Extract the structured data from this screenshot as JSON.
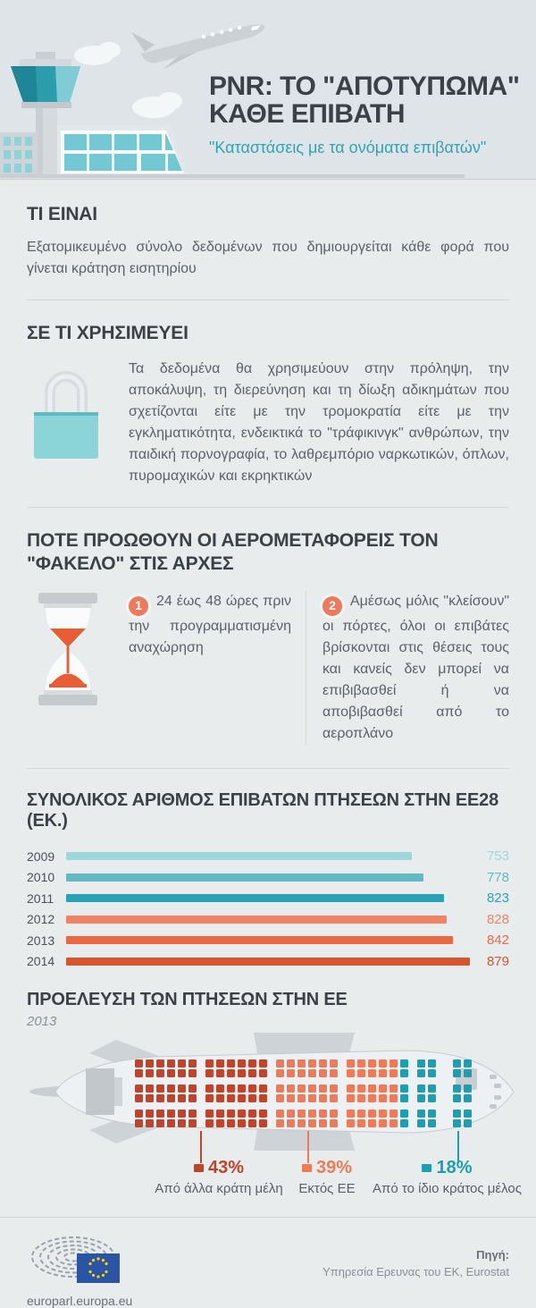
{
  "header": {
    "title_line1": "PNR: ΤΟ \"ΑΠΟΤΥΠΩΜΑ\"",
    "title_line2": "ΚΑΘΕ ΕΠΙΒΑΤΗ",
    "subtitle": "\"Καταστάσεις με τα ονόματα επιβατών\""
  },
  "sections": {
    "what": {
      "heading": "ΤΙ ΕΙΝΑΙ",
      "body": "Εξατομικευμένο σύνολο δεδομένων που δημιουργείται κάθε φορά που γίνεται κράτηση εισητηρίου"
    },
    "use": {
      "heading": "ΣΕ ΤΙ ΧΡΗΣΙΜΕΥΕΙ",
      "body": "Τα δεδομένα θα χρησιμεύουν στην πρόληψη, την αποκάλυψη, τη διερεύνηση και τη δίωξη αδικημάτων που σχετίζονται είτε με την τρομοκρατία είτε με την εγκληματικότητα, ενδεικτικά το \"τράφικινγκ\" ανθρώπων, την παιδική πορνογραφία, το λαθρεμπόριο ναρκωτικών, όπλων, πυρομαχικών και εκρηκτικών"
    },
    "when": {
      "heading_line1": "ΠΟΤΕ ΠΡΟΩΘΟΥΝ ΟΙ ΑΕΡΟΜΕΤΑΦΟΡΕΙΣ ΤΟΝ",
      "heading_line2": "\"ΦΑΚΕΛΟ\" ΣΤΙΣ ΑΡΧΕΣ",
      "items": [
        {
          "number": "1",
          "text": "24 έως 48 ώρες πριν την προγραμματισμένη αναχώρηση"
        },
        {
          "number": "2",
          "text": "Αμέσως μόλις \"κλείσουν\" οι πόρτες, όλοι οι επιβάτες βρίσκονται στις θέσεις τους και κανείς δεν μπορεί να επιβιβασθεί ή να αποβιβασθεί από το αεροπλάνο"
        }
      ]
    }
  },
  "chart_data": [
    {
      "type": "bar",
      "orientation": "horizontal",
      "title": "ΣΥΝΟΛΙΚΟΣ ΑΡΙΘΜΟΣ ΕΠΙΒΑΤΩΝ ΠΤΗΣΕΩΝ ΣΤΗΝ ΕΕ28 (ΕΚ.)",
      "categories": [
        "2009",
        "2010",
        "2011",
        "2012",
        "2013",
        "2014"
      ],
      "values": [
        753,
        778,
        823,
        828,
        842,
        879
      ],
      "colors": [
        "#9dd6dc",
        "#62b9c3",
        "#28a3b5",
        "#f08365",
        "#e96a42",
        "#d5552c"
      ],
      "xlim": [
        0,
        879
      ],
      "value_labels_position": "right",
      "grid": false
    },
    {
      "type": "pie",
      "style": "pictorial-seatmap",
      "title": "ΠΡΟΕΛΕΥΣΗ ΤΩΝ ΠΤΗΣΕΩΝ ΣΤΗΝ  ΕΕ",
      "subtitle": "2013",
      "slices": [
        {
          "label": "Από άλλα κράτη μέλη",
          "value": 43,
          "color": "#c2432a"
        },
        {
          "label": "Εκτός ΕΕ",
          "value": 39,
          "color": "#ee7a57"
        },
        {
          "label": "Από το ίδιο κράτος μέλος",
          "value": 18,
          "color": "#1aa0b2"
        }
      ]
    }
  ],
  "footer": {
    "site": "europarl.europa.eu",
    "source_label": "Πηγή:",
    "source": "Υπηρεσία Ερευνας του ΕΚ, Eurostat"
  }
}
